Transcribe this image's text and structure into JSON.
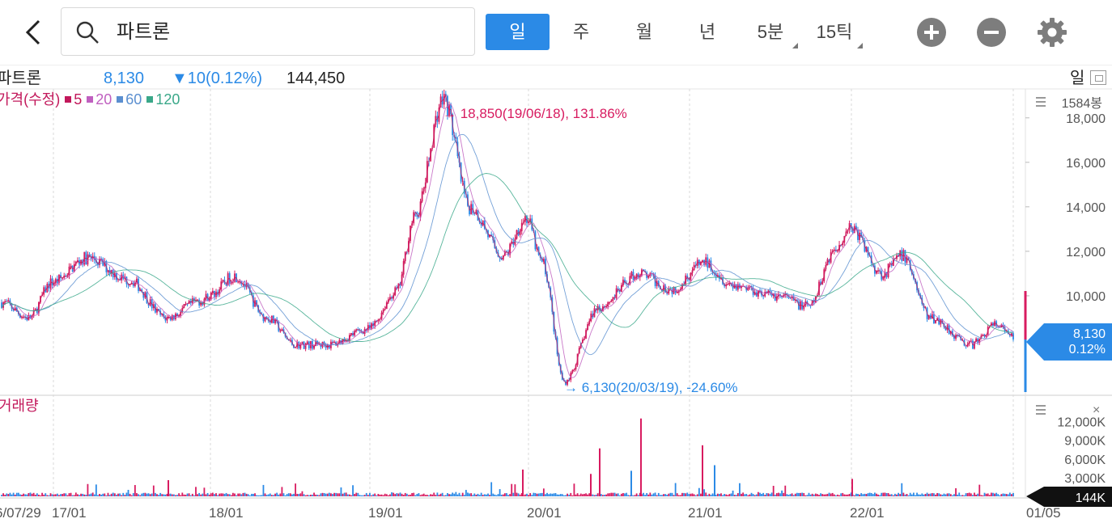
{
  "search": {
    "query": "파트론"
  },
  "periods": [
    {
      "label": "일",
      "active": true
    },
    {
      "label": "주",
      "active": false
    },
    {
      "label": "월",
      "active": false
    },
    {
      "label": "년",
      "active": false
    },
    {
      "label": "5분",
      "active": false
    },
    {
      "label": "15틱",
      "active": false
    }
  ],
  "info": {
    "name": "파트론",
    "price": "8,130",
    "change": "▼10(0.12%)",
    "volume": "144,450",
    "mode": "일"
  },
  "colors": {
    "up": "#d81b60",
    "down": "#2b8ae6",
    "ma5": "#c2185b",
    "ma20": "#c060c0",
    "ma60": "#5b8fd0",
    "ma120": "#3aa889"
  },
  "chart_data": {
    "type": "candlestick",
    "price_panel": {
      "title": "가격(수정)",
      "ma_legend": [
        "5",
        "20",
        "60",
        "120"
      ],
      "y_unit": "1584봉",
      "y_ticks": [
        "18,000",
        "16,000",
        "14,000",
        "12,000",
        "10,000"
      ],
      "ylim": [
        5600,
        19300
      ],
      "max_annotation": "18,850(19/06/18), 131.86%",
      "min_annotation": "6,130(20/03/19), -24.60%",
      "last_price": "8,130",
      "last_change": "0.12%",
      "approx_close_path": [
        [
          "16/07/29",
          9700
        ],
        [
          "16/10",
          9000
        ],
        [
          "17/01",
          10600
        ],
        [
          "17/04",
          11700
        ],
        [
          "17/06",
          10700
        ],
        [
          "17/09",
          9000
        ],
        [
          "17/12",
          9800
        ],
        [
          "18/01",
          10000
        ],
        [
          "18/03",
          10900
        ],
        [
          "18/06",
          9000
        ],
        [
          "18/09",
          7800
        ],
        [
          "18/12",
          7800
        ],
        [
          "19/01",
          8500
        ],
        [
          "19/03",
          10200
        ],
        [
          "19/04",
          13500
        ],
        [
          "19/06/18",
          18850
        ],
        [
          "19/08",
          14000
        ],
        [
          "19/10",
          11800
        ],
        [
          "19/12",
          13500
        ],
        [
          "20/01",
          11500
        ],
        [
          "20/03/19",
          6130
        ],
        [
          "20/05",
          9500
        ],
        [
          "20/08",
          11000
        ],
        [
          "20/11",
          10300
        ],
        [
          "21/01",
          11500
        ],
        [
          "21/03",
          10500
        ],
        [
          "21/06",
          10000
        ],
        [
          "21/09",
          9500
        ],
        [
          "21/12",
          12000
        ],
        [
          "22/01",
          13100
        ],
        [
          "22/03",
          11000
        ],
        [
          "22/05",
          11800
        ],
        [
          "22/07",
          9000
        ],
        [
          "22/10",
          7800
        ],
        [
          "22/12",
          8700
        ],
        [
          "23/01/05",
          8130
        ]
      ]
    },
    "volume_panel": {
      "title": "거래량",
      "y_ticks": [
        "12,000K",
        "9,000K",
        "6,000K",
        "3,000K"
      ],
      "ylim": [
        0,
        13500
      ],
      "last_volume": "144K"
    },
    "x_ticks": [
      "6/07/29",
      "17/01",
      "18/01",
      "19/01",
      "20/01",
      "21/01",
      "22/01",
      "01/05"
    ]
  }
}
